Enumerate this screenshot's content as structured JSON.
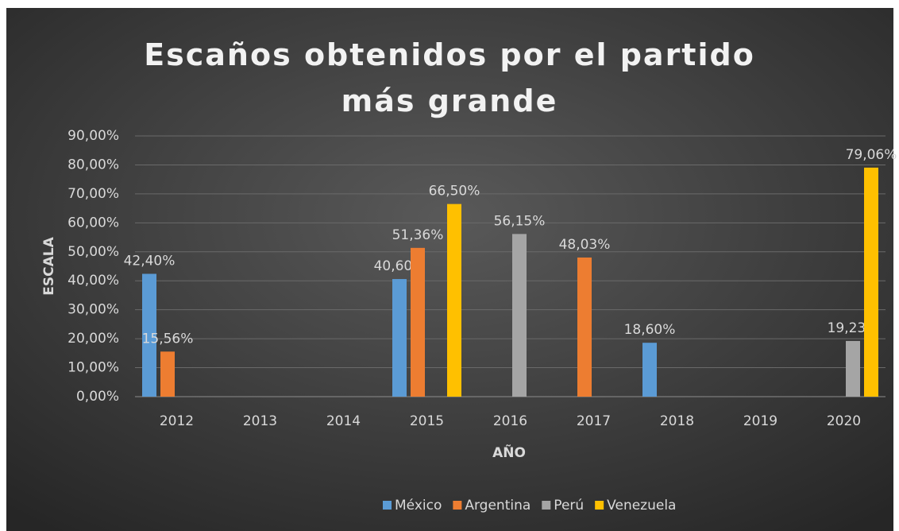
{
  "chart_data": {
    "type": "bar",
    "title": "Escaños obtenidos por el partido más grande",
    "x_label": "AÑO",
    "y_label": "ESCALA",
    "categories": [
      "2012",
      "2013",
      "2014",
      "2015",
      "2016",
      "2017",
      "2018",
      "2019",
      "2020"
    ],
    "series": [
      {
        "name": "México",
        "color": "#5b9bd5",
        "values": [
          42.4,
          null,
          null,
          40.6,
          null,
          null,
          18.6,
          null,
          null
        ],
        "value_labels": [
          "42,40%",
          null,
          null,
          "40,60%",
          null,
          null,
          "18,60%",
          null,
          null
        ]
      },
      {
        "name": "Argentina",
        "color": "#ed7d31",
        "values": [
          15.56,
          null,
          null,
          51.36,
          null,
          48.03,
          null,
          null,
          null
        ],
        "value_labels": [
          "15,56%",
          null,
          null,
          "51,36%",
          null,
          "48,03%",
          null,
          null,
          null
        ]
      },
      {
        "name": "Perú",
        "color": "#a5a5a5",
        "values": [
          null,
          null,
          null,
          null,
          56.15,
          null,
          null,
          null,
          19.23
        ],
        "value_labels": [
          null,
          null,
          null,
          null,
          "56,15%",
          null,
          null,
          null,
          "19,23%"
        ]
      },
      {
        "name": "Venezuela",
        "color": "#ffc000",
        "values": [
          null,
          null,
          null,
          66.5,
          null,
          null,
          null,
          null,
          79.06
        ],
        "value_labels": [
          null,
          null,
          null,
          "66,50%",
          null,
          null,
          null,
          null,
          "79,06%"
        ]
      }
    ],
    "ylim": [
      0,
      90
    ],
    "yticks": [
      {
        "value": 0,
        "label": "0,00%"
      },
      {
        "value": 10,
        "label": "10,00%"
      },
      {
        "value": 20,
        "label": "20,00%"
      },
      {
        "value": 30,
        "label": "30,00%"
      },
      {
        "value": 40,
        "label": "40,00%"
      },
      {
        "value": 50,
        "label": "50,00%"
      },
      {
        "value": 60,
        "label": "60,00%"
      },
      {
        "value": 70,
        "label": "70,00%"
      },
      {
        "value": 80,
        "label": "80,00%"
      },
      {
        "value": 90,
        "label": "90,00%"
      }
    ],
    "grid": true,
    "legend": "bottom"
  }
}
